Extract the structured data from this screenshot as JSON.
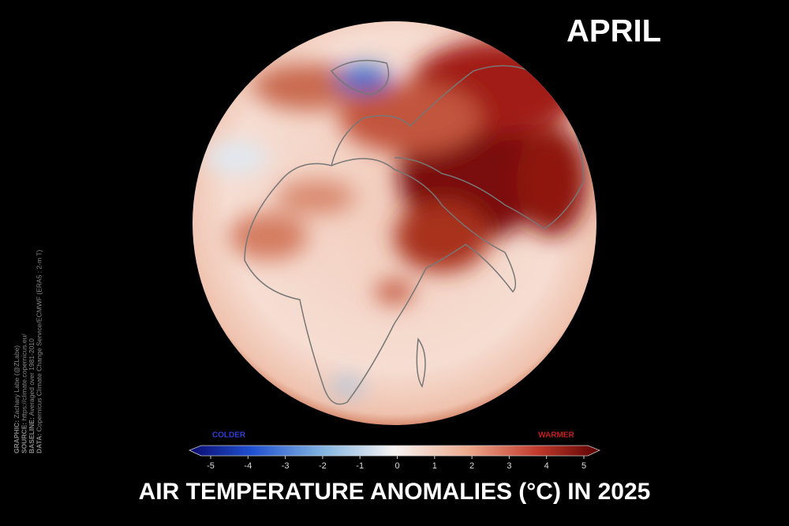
{
  "month": "APRIL",
  "title": "AIR TEMPERATURE ANOMALIES (°C) IN 2025",
  "colorbar": {
    "lim": [
      -5,
      5
    ],
    "ticks": [
      -5,
      -4,
      -3,
      -2,
      -1,
      0,
      1,
      2,
      3,
      4,
      5
    ],
    "low_label": "COLDER",
    "high_label": "WARMER"
  },
  "credits": [
    {
      "key": "GRAPHIC:",
      "text": "Zachary Labe (@ZLabe)"
    },
    {
      "key": "SOURCE:",
      "text": "https://climate.copernicus.eu/"
    },
    {
      "key": "BASELINE:",
      "text": "Averaged over 1981-2010"
    },
    {
      "key": "DATA:",
      "text": "Copernicus Climate Change Service/ECMWF (ERA5 : 2-m T)"
    }
  ]
}
